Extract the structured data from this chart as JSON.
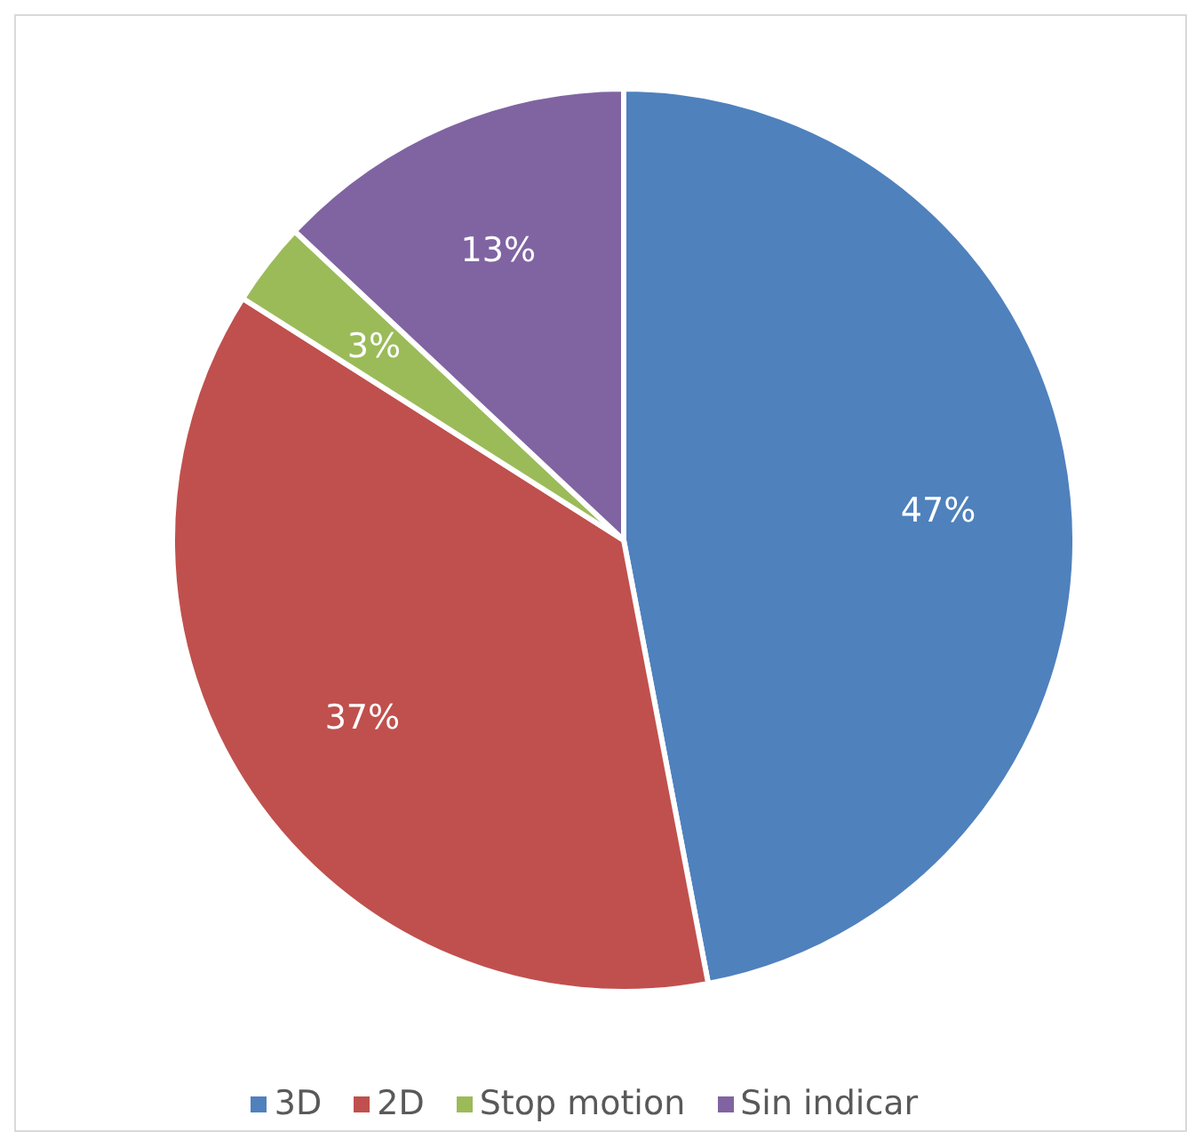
{
  "chart_data": {
    "type": "pie",
    "categories": [
      "3D",
      "2D",
      "Stop motion",
      "Sin indicar"
    ],
    "values": [
      47,
      37,
      3,
      13
    ],
    "value_labels": [
      "47%",
      "37%",
      "3%",
      "13%"
    ],
    "colors": [
      "#4f81bd",
      "#c0504d",
      "#9bbb59",
      "#8064a2"
    ],
    "legend": "bottom"
  }
}
